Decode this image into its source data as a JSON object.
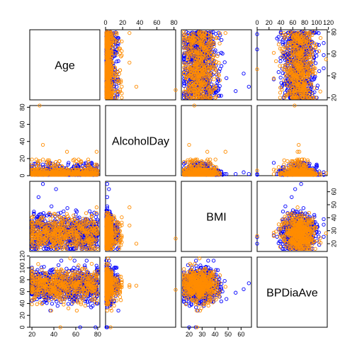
{
  "chart_data": {
    "type": "scatter-matrix",
    "variables": [
      "Age",
      "AlcoholDay",
      "BMI",
      "BPDiaAve"
    ],
    "ranges": {
      "Age": [
        18,
        82
      ],
      "AlcoholDay": [
        0,
        82
      ],
      "BMI": [
        14,
        68
      ],
      "BPDiaAve": [
        0,
        118
      ]
    },
    "ticks": {
      "Age": [
        "20",
        "40",
        "60",
        "80"
      ],
      "AlcoholDay": [
        "0",
        "20",
        "40",
        "60",
        "80"
      ],
      "BMI": [
        "20",
        "30",
        "40",
        "50",
        "60"
      ],
      "BPDiaAve": [
        "0",
        "20",
        "40",
        "60",
        "80",
        "100",
        "120"
      ]
    },
    "series_colors": {
      "group_1": "#ff8c00",
      "group_2": "#0000ff"
    },
    "marker": "open-circle",
    "point_sample": [
      {
        "Age": 27,
        "AlcoholDay": 82,
        "BMI": 24,
        "BPDiaAve": 63,
        "group": "group_1"
      },
      {
        "Age": 52,
        "AlcoholDay": 28,
        "BMI": 34,
        "BPDiaAve": 71,
        "group": "group_1"
      },
      {
        "Age": 79,
        "AlcoholDay": 28,
        "BMI": 48,
        "BPDiaAve": 68,
        "group": "group_1"
      },
      {
        "Age": 30,
        "AlcoholDay": 36,
        "BMI": 20,
        "BPDiaAve": 70,
        "group": "group_1"
      },
      {
        "Age": 42,
        "AlcoholDay": 4,
        "BMI": 62,
        "BPDiaAve": 64,
        "group": "group_2"
      },
      {
        "Age": 30,
        "AlcoholDay": 2,
        "BMI": 66,
        "BPDiaAve": 74,
        "group": "group_2"
      },
      {
        "Age": 55,
        "AlcoholDay": 3,
        "BMI": 28,
        "BPDiaAve": 116,
        "group": "group_1"
      },
      {
        "Age": 46,
        "AlcoholDay": 6,
        "BMI": 26,
        "BPDiaAve": 0,
        "group": "group_1"
      },
      {
        "Age": 64,
        "AlcoholDay": 2,
        "BMI": 20,
        "BPDiaAve": 0,
        "group": "group_2"
      },
      {
        "Age": 78,
        "AlcoholDay": 1,
        "BMI": 25,
        "BPDiaAve": 0,
        "group": "group_2"
      }
    ],
    "random_seed": 7,
    "n_points": {
      "group_1": 520,
      "group_2": 780
    }
  }
}
